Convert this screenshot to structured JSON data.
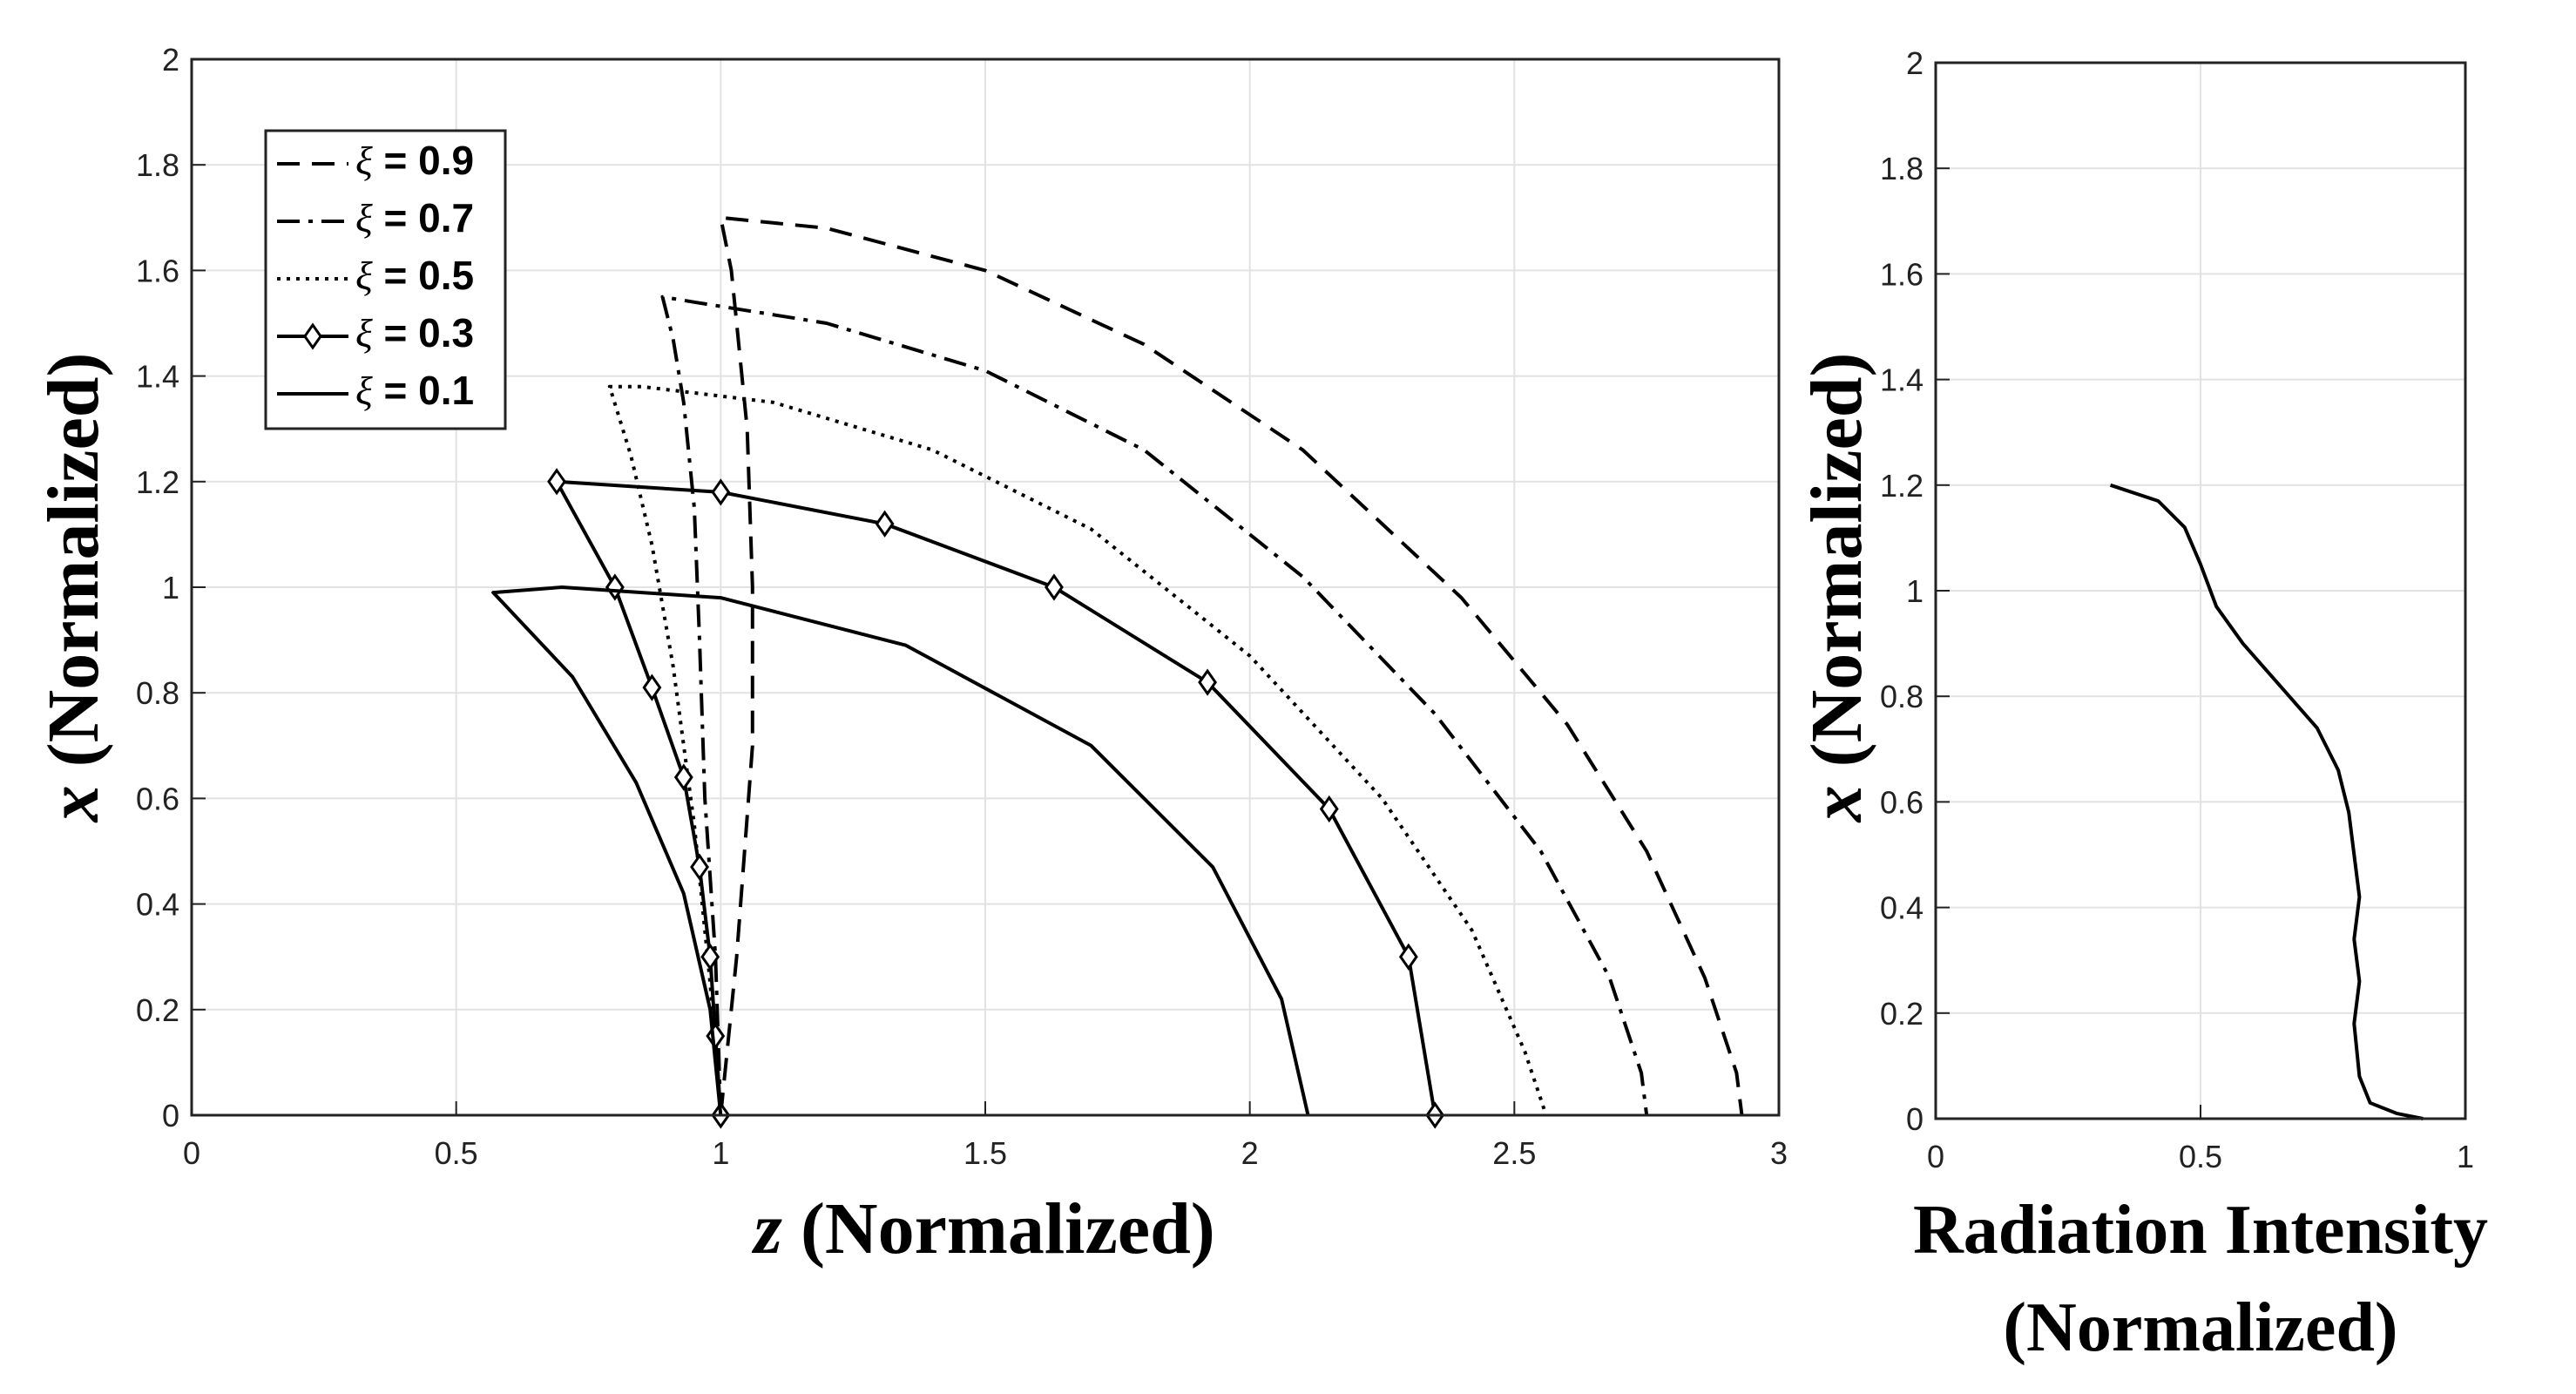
{
  "chart_data": [
    {
      "type": "line",
      "name": "left",
      "xlabel_var": "z",
      "xlabel_rest": " (Normalized)",
      "ylabel_var": "x",
      "ylabel_rest": " (Normalized)",
      "xlim": [
        0,
        3
      ],
      "ylim": [
        0,
        2
      ],
      "xticks": [
        0,
        0.5,
        1,
        1.5,
        2,
        2.5,
        3
      ],
      "xtick_labels": [
        "0",
        "0.5",
        "1",
        "1.5",
        "2",
        "2.5",
        "3"
      ],
      "yticks": [
        0,
        0.2,
        0.4,
        0.6,
        0.8,
        1,
        1.2,
        1.4,
        1.6,
        1.8,
        2
      ],
      "ytick_labels": [
        "0",
        "0.2",
        "0.4",
        "0.6",
        "0.8",
        "1",
        "1.2",
        "1.4",
        "1.6",
        "1.8",
        "2"
      ],
      "grid": true,
      "legend_position": "top-left",
      "series": [
        {
          "name": "0.9",
          "style": "dashed",
          "marker": "none",
          "x": [
            1.0,
            1.03,
            1.06,
            1.06,
            1.05,
            1.03,
            1.02,
            1.0,
            1.2,
            1.5,
            1.8,
            2.1,
            2.4,
            2.6,
            2.75,
            2.86,
            2.92,
            2.93
          ],
          "y": [
            0.0,
            0.3,
            0.7,
            1.0,
            1.3,
            1.5,
            1.6,
            1.7,
            1.68,
            1.6,
            1.46,
            1.26,
            0.98,
            0.74,
            0.5,
            0.26,
            0.08,
            0.0
          ]
        },
        {
          "name": "0.7",
          "style": "dashdot",
          "marker": "none",
          "x": [
            1.0,
            0.99,
            0.97,
            0.96,
            0.95,
            0.93,
            0.91,
            0.89,
            0.95,
            1.2,
            1.5,
            1.8,
            2.1,
            2.35,
            2.55,
            2.68,
            2.74,
            2.75
          ],
          "y": [
            0.0,
            0.3,
            0.6,
            0.9,
            1.15,
            1.35,
            1.47,
            1.55,
            1.54,
            1.5,
            1.41,
            1.26,
            1.02,
            0.76,
            0.5,
            0.26,
            0.08,
            0.0
          ]
        },
        {
          "name": "0.5",
          "style": "dotted",
          "marker": "none",
          "x": [
            1.0,
            0.98,
            0.95,
            0.91,
            0.87,
            0.83,
            0.79,
            0.85,
            1.1,
            1.4,
            1.7,
            2.0,
            2.25,
            2.42,
            2.52,
            2.56
          ],
          "y": [
            0.0,
            0.25,
            0.55,
            0.85,
            1.08,
            1.25,
            1.38,
            1.38,
            1.35,
            1.26,
            1.11,
            0.87,
            0.6,
            0.35,
            0.12,
            0.0
          ]
        },
        {
          "name": "0.3",
          "style": "solid",
          "marker": "diamond",
          "x": [
            1.0,
            0.99,
            0.98,
            0.96,
            0.93,
            0.87,
            0.8,
            0.69,
            1.0,
            1.31,
            1.63,
            1.92,
            2.15,
            2.3,
            2.35
          ],
          "y": [
            0.0,
            0.15,
            0.3,
            0.47,
            0.64,
            0.81,
            1.0,
            1.2,
            1.18,
            1.12,
            1.0,
            0.82,
            0.58,
            0.3,
            0.0
          ]
        },
        {
          "name": "0.1",
          "style": "solid",
          "marker": "none",
          "x": [
            1.0,
            0.98,
            0.93,
            0.84,
            0.72,
            0.57,
            0.7,
            1.0,
            1.35,
            1.7,
            1.93,
            2.06,
            2.11
          ],
          "y": [
            0.0,
            0.2,
            0.42,
            0.63,
            0.83,
            0.99,
            1.0,
            0.98,
            0.89,
            0.7,
            0.47,
            0.22,
            0.0
          ]
        }
      ],
      "legend_entries": [
        {
          "series": "0.9",
          "symbol": "ξ",
          "rest": " = 0.9"
        },
        {
          "series": "0.7",
          "symbol": "ξ",
          "rest": " = 0.7"
        },
        {
          "series": "0.5",
          "symbol": "ξ",
          "rest": " = 0.5"
        },
        {
          "series": "0.3",
          "symbol": "ξ",
          "rest": " = 0.3"
        },
        {
          "series": "0.1",
          "symbol": "ξ",
          "rest": " = 0.1"
        }
      ]
    },
    {
      "type": "line",
      "name": "right",
      "xlabel_line1": "Radiation Intensity",
      "xlabel_line2": "(Normalized)",
      "ylabel_var": "x",
      "ylabel_rest": " (Normalized)",
      "xlim": [
        0,
        1
      ],
      "ylim": [
        0,
        2
      ],
      "xticks": [
        0,
        0.5,
        1
      ],
      "xtick_labels": [
        "0",
        "0.5",
        "1"
      ],
      "yticks": [
        0,
        0.2,
        0.4,
        0.6,
        0.8,
        1,
        1.2,
        1.4,
        1.6,
        1.8,
        2
      ],
      "ytick_labels": [
        "0",
        "0.2",
        "0.4",
        "0.6",
        "0.8",
        "1",
        "1.2",
        "1.4",
        "1.6",
        "1.8",
        "2"
      ],
      "grid": true,
      "series": [
        {
          "name": "intensity",
          "style": "solid",
          "x": [
            0.33,
            0.42,
            0.47,
            0.5,
            0.53,
            0.58,
            0.65,
            0.72,
            0.76,
            0.78,
            0.79,
            0.8,
            0.79,
            0.8,
            0.79,
            0.8,
            0.82,
            0.87,
            0.92
          ],
          "y": [
            1.2,
            1.17,
            1.12,
            1.05,
            0.97,
            0.9,
            0.82,
            0.74,
            0.66,
            0.58,
            0.5,
            0.42,
            0.34,
            0.26,
            0.18,
            0.08,
            0.03,
            0.01,
            0.0
          ]
        }
      ]
    }
  ]
}
